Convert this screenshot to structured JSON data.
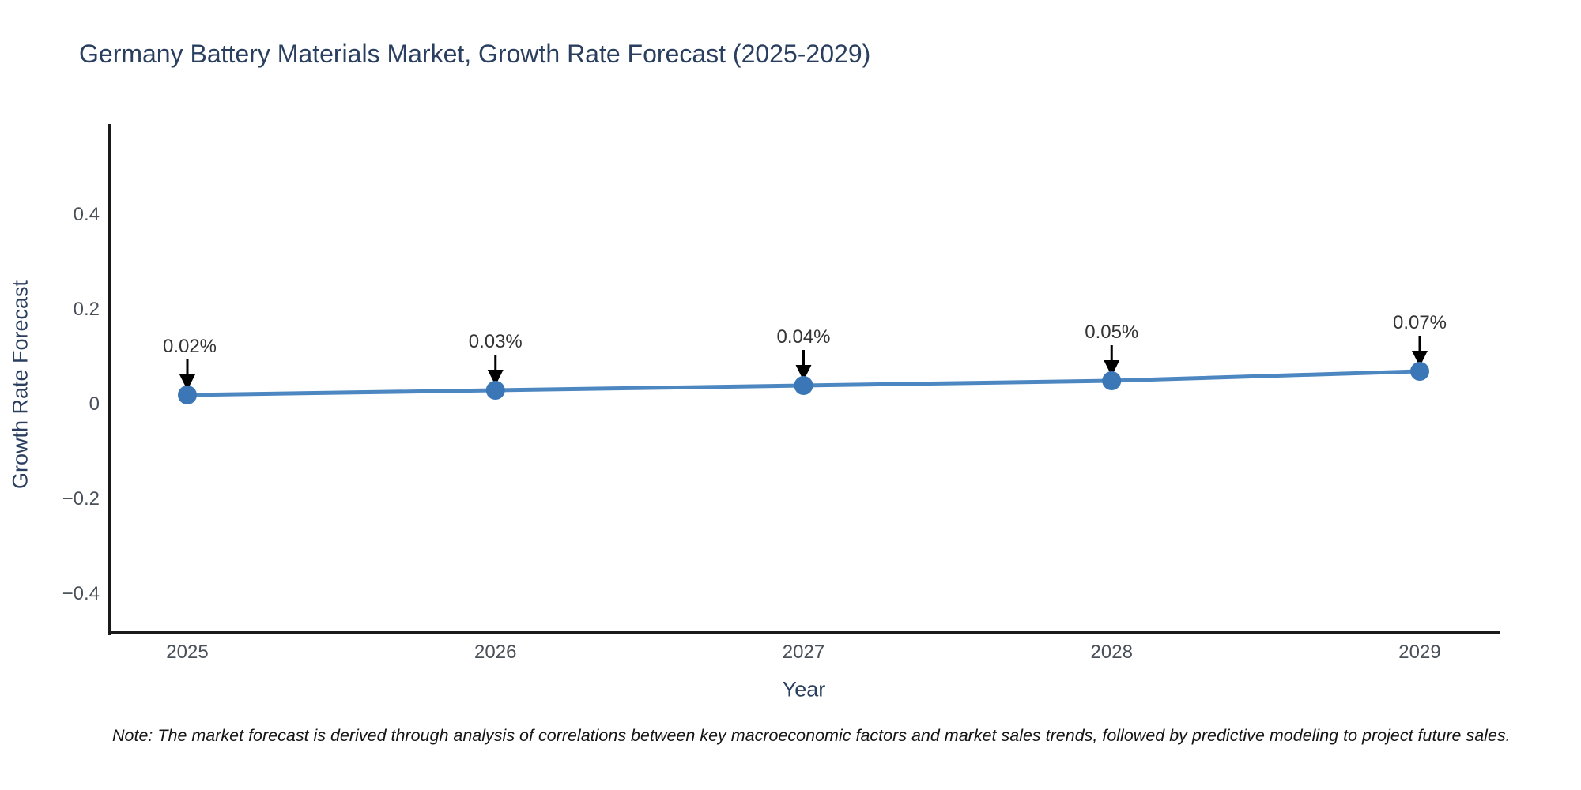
{
  "title": "Germany Battery Materials Market, Growth Rate Forecast (2025-2029)",
  "y_axis": {
    "label": "Growth Rate Forecast",
    "tick_labels": [
      "0.4",
      "0.2",
      "0",
      "−0.2",
      "−0.4"
    ],
    "tick_values": [
      0.4,
      0.2,
      0,
      -0.2,
      -0.4
    ]
  },
  "x_axis": {
    "label": "Year",
    "tick_labels": [
      "2025",
      "2026",
      "2027",
      "2028",
      "2029"
    ]
  },
  "note": "Note: The market forecast is derived through analysis of correlations between key macroeconomic factors and market sales trends, followed by predictive modeling to project future sales.",
  "colors": {
    "line": "#4d87c1",
    "marker": "#3b77b6",
    "arrow": "#000000",
    "axis": "#1a1a1a",
    "title_text": "#2a3f5f",
    "tick_text": "#4a5059",
    "annotation_text": "#333333"
  },
  "chart_data": {
    "type": "line",
    "x": [
      2025,
      2026,
      2027,
      2028,
      2029
    ],
    "values": [
      0.02,
      0.03,
      0.04,
      0.05,
      0.07
    ],
    "point_labels": [
      "0.02%",
      "0.03%",
      "0.04%",
      "0.05%",
      "0.07%"
    ],
    "series_name": "Growth Rate Forecast",
    "title": "Germany Battery Materials Market, Growth Rate Forecast (2025-2029)",
    "xlabel": "Year",
    "ylabel": "Growth Rate Forecast",
    "ylim": [
      -0.48,
      0.59
    ],
    "yticks": [
      -0.4,
      -0.2,
      0,
      0.2,
      0.4
    ],
    "grid": false,
    "legend": "none",
    "annotations": "value labels with downward black arrows above each marker"
  }
}
